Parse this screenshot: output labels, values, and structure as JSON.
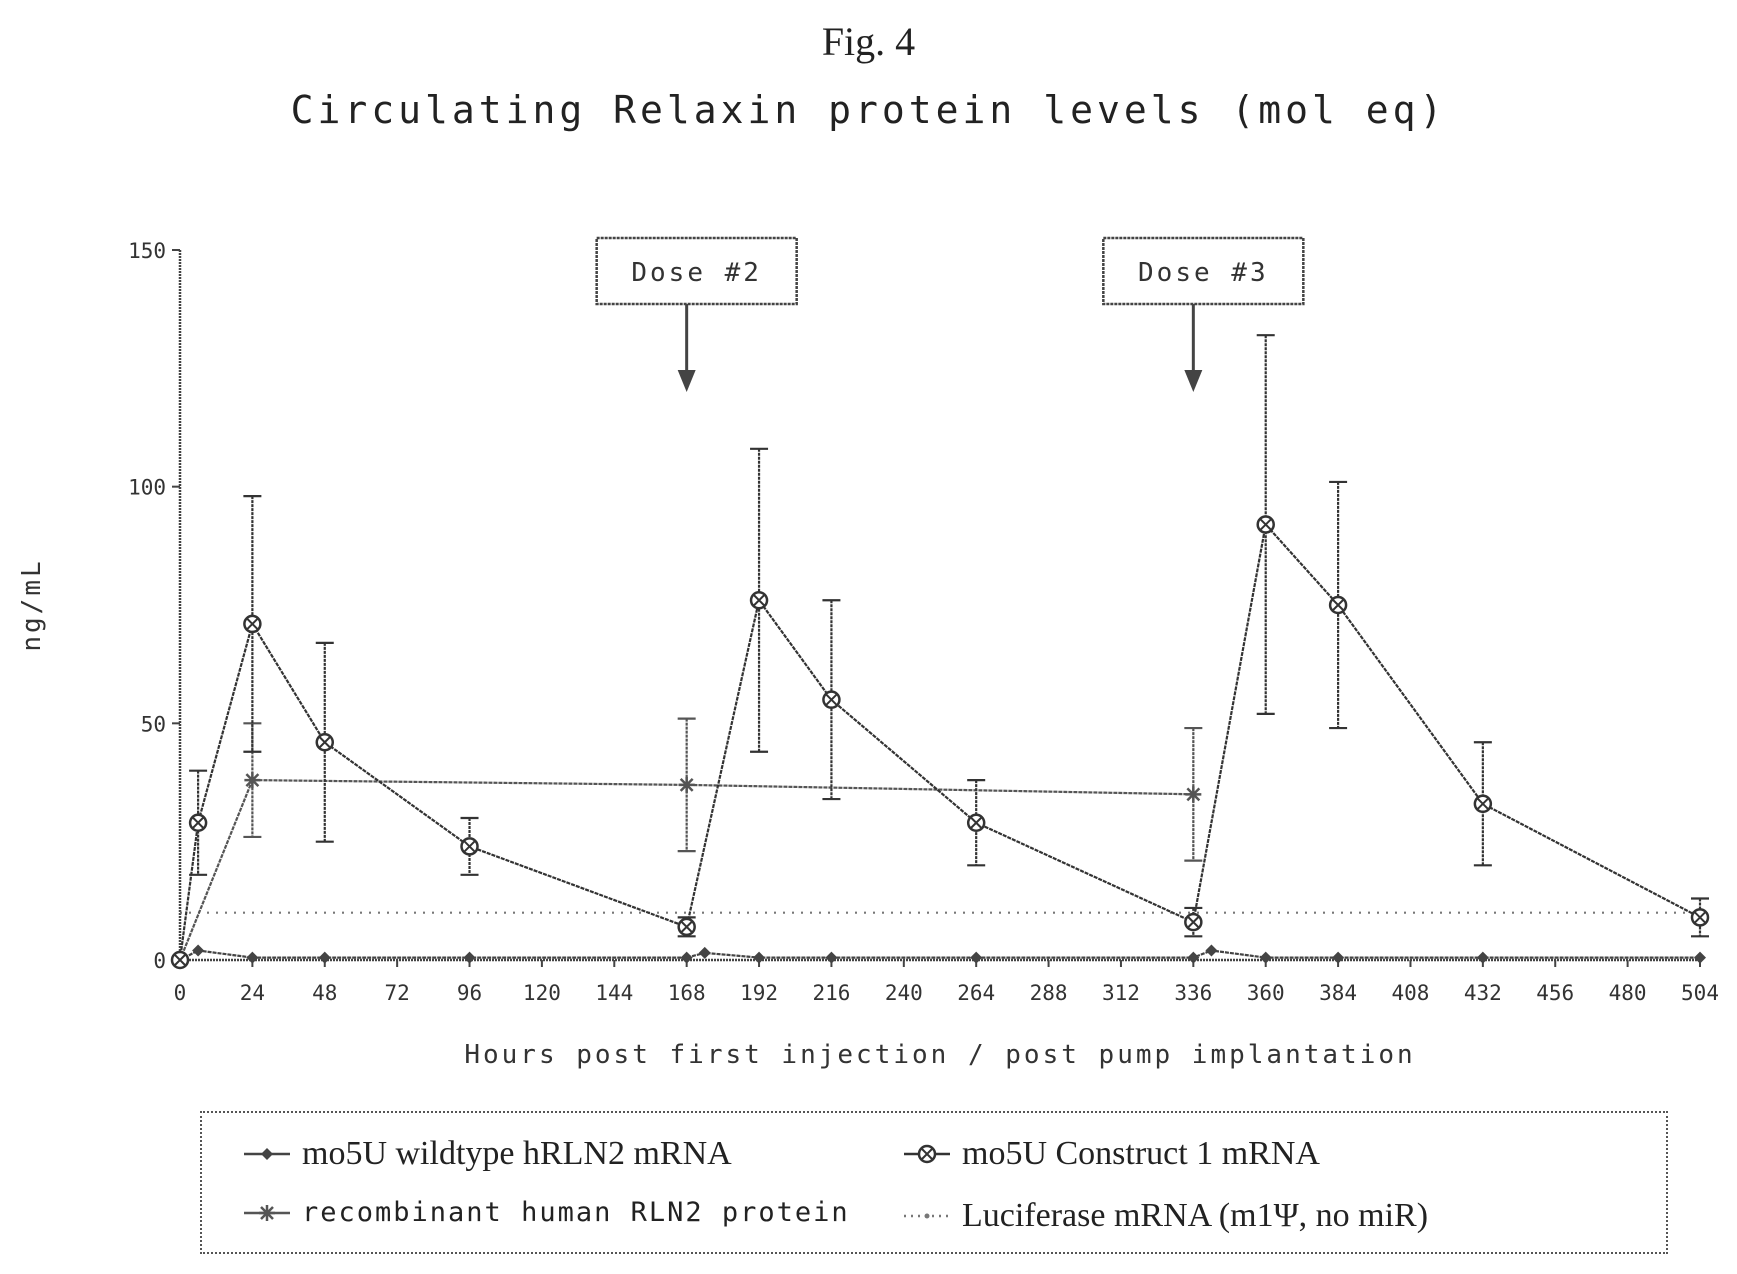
{
  "figure": {
    "caption": "Fig. 4"
  },
  "chart_data": {
    "type": "line",
    "title": "Circulating Relaxin protein levels (mol eq)",
    "xlabel": "Hours post first injection / post pump implantation",
    "ylabel": "ng/mL",
    "xlim": [
      0,
      504
    ],
    "ylim": [
      0,
      150
    ],
    "xticks": [
      0,
      24,
      48,
      72,
      96,
      120,
      144,
      168,
      192,
      216,
      240,
      264,
      288,
      312,
      336,
      360,
      384,
      408,
      432,
      456,
      480,
      504
    ],
    "yticks": [
      0,
      50,
      100,
      150
    ],
    "grid": false,
    "legend_position": "bottom",
    "annotations": [
      {
        "label": "Dose #2",
        "x": 168,
        "y": 120
      },
      {
        "label": "Dose #3",
        "x": 336,
        "y": 120
      }
    ],
    "series": [
      {
        "name": "mo5U wildtype hRLN2 mRNA",
        "marker": "diamond",
        "line": "solid",
        "color": "#444444",
        "points": [
          {
            "x": 0,
            "y": 0
          },
          {
            "x": 6,
            "y": 2
          },
          {
            "x": 24,
            "y": 0.5
          },
          {
            "x": 48,
            "y": 0.5
          },
          {
            "x": 96,
            "y": 0.5
          },
          {
            "x": 168,
            "y": 0.5
          },
          {
            "x": 174,
            "y": 1.5
          },
          {
            "x": 192,
            "y": 0.5
          },
          {
            "x": 216,
            "y": 0.5
          },
          {
            "x": 264,
            "y": 0.5
          },
          {
            "x": 336,
            "y": 0.5
          },
          {
            "x": 342,
            "y": 2
          },
          {
            "x": 360,
            "y": 0.5
          },
          {
            "x": 384,
            "y": 0.5
          },
          {
            "x": 432,
            "y": 0.5
          },
          {
            "x": 504,
            "y": 0.5
          }
        ]
      },
      {
        "name": "mo5U Construct 1 mRNA",
        "marker": "circle-x",
        "line": "solid",
        "color": "#333333",
        "points": [
          {
            "x": 0,
            "y": 0
          },
          {
            "x": 6,
            "y": 29,
            "err": 11
          },
          {
            "x": 24,
            "y": 71,
            "err": 27
          },
          {
            "x": 48,
            "y": 46,
            "err": 21
          },
          {
            "x": 96,
            "y": 24,
            "err": 6
          },
          {
            "x": 168,
            "y": 7,
            "err": 2
          },
          {
            "x": 192,
            "y": 76,
            "err": 32
          },
          {
            "x": 216,
            "y": 55,
            "err": 21
          },
          {
            "x": 264,
            "y": 29,
            "err": 9
          },
          {
            "x": 336,
            "y": 8,
            "err": 3
          },
          {
            "x": 360,
            "y": 92,
            "err": 40
          },
          {
            "x": 384,
            "y": 75,
            "err": 26
          },
          {
            "x": 432,
            "y": 33,
            "err": 13
          },
          {
            "x": 504,
            "y": 9,
            "err": 4
          }
        ]
      },
      {
        "name": "recombinant human RLN2 protein",
        "marker": "star",
        "line": "solid",
        "color": "#555555",
        "points": [
          {
            "x": 0,
            "y": 0
          },
          {
            "x": 24,
            "y": 38,
            "err": 12
          },
          {
            "x": 168,
            "y": 37,
            "err": 14
          },
          {
            "x": 336,
            "y": 35,
            "err": 14
          }
        ]
      },
      {
        "name": "Luciferase mRNA (m1Ψ, no miR)",
        "marker": "dot",
        "line": "dotted",
        "color": "#777777",
        "points": [
          {
            "x": 0,
            "y": 10
          },
          {
            "x": 504,
            "y": 10
          }
        ]
      }
    ]
  }
}
